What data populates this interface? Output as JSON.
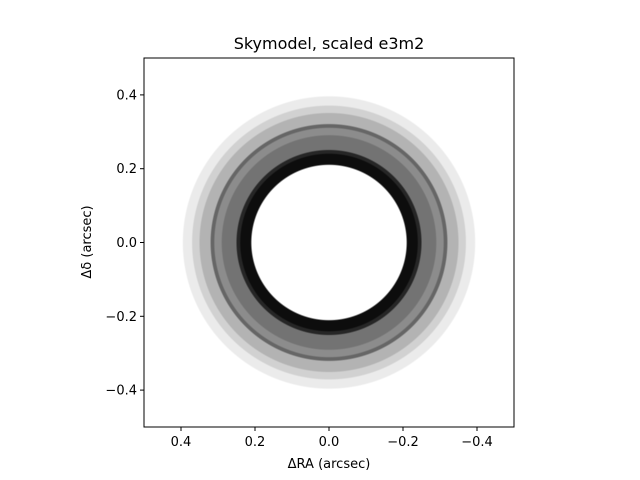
{
  "chart_data": {
    "type": "heatmap",
    "title": "Skymodel, scaled e3m2",
    "xlabel": "ΔRA (arcsec)",
    "ylabel": "Δδ (arcsec)",
    "xlim": [
      0.5,
      -0.5
    ],
    "ylim": [
      -0.5,
      0.5
    ],
    "xticks": [
      0.4,
      0.2,
      0.0,
      -0.2,
      -0.4
    ],
    "xtick_labels": [
      "0.4",
      "0.2",
      "0.0",
      "−0.2",
      "−0.4"
    ],
    "yticks": [
      0.4,
      0.2,
      0.0,
      -0.2,
      -0.4
    ],
    "ytick_labels": [
      "0.4",
      "0.2",
      "0.0",
      "−0.2",
      "−0.4"
    ],
    "colormap": "gray_r",
    "grid": false,
    "rings": [
      {
        "r_inner": 0.0,
        "r_outer": 0.21,
        "intensity": 0.0
      },
      {
        "r_inner": 0.21,
        "r_outer": 0.24,
        "intensity": 0.95
      },
      {
        "r_inner": 0.24,
        "r_outer": 0.25,
        "intensity": 0.85
      },
      {
        "r_inner": 0.25,
        "r_outer": 0.29,
        "intensity": 0.55
      },
      {
        "r_inner": 0.29,
        "r_outer": 0.31,
        "intensity": 0.45
      },
      {
        "r_inner": 0.31,
        "r_outer": 0.32,
        "intensity": 0.6
      },
      {
        "r_inner": 0.32,
        "r_outer": 0.35,
        "intensity": 0.3
      },
      {
        "r_inner": 0.35,
        "r_outer": 0.37,
        "intensity": 0.18
      },
      {
        "r_inner": 0.37,
        "r_outer": 0.395,
        "intensity": 0.08
      },
      {
        "r_inner": 0.395,
        "r_outer": 0.5,
        "intensity": 0.0
      }
    ]
  }
}
